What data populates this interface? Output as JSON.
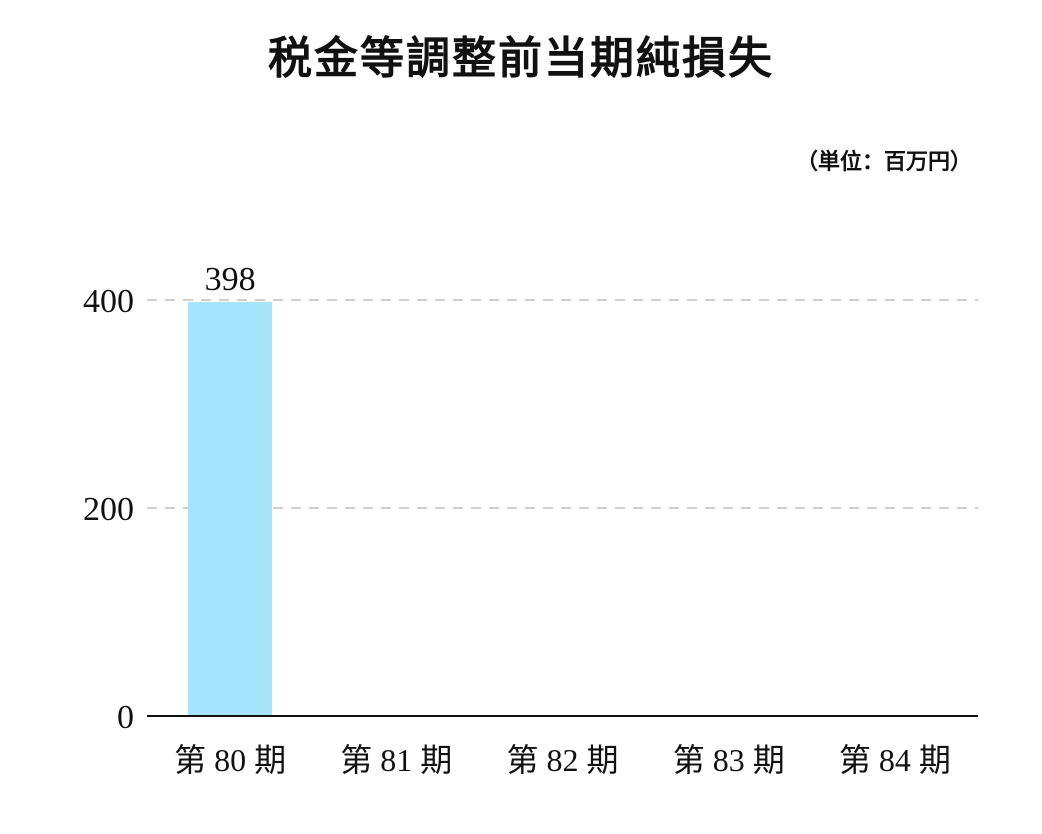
{
  "chart_data": {
    "type": "bar",
    "title": "税金等調整前当期純損失",
    "unit": "（単位：百万円）",
    "categories": [
      "第 80 期",
      "第 81 期",
      "第 82 期",
      "第 83 期",
      "第 84 期"
    ],
    "values": [
      398,
      null,
      null,
      null,
      null
    ],
    "data_labels": [
      "398",
      "",
      "",
      "",
      ""
    ],
    "yticks": [
      0,
      200,
      400
    ],
    "ylim": [
      0,
      400
    ],
    "grid": "horizontal dashed",
    "bar_color": "#a6e4fc",
    "grid_color": "#d0d0d0",
    "axis_color": "#111111"
  }
}
